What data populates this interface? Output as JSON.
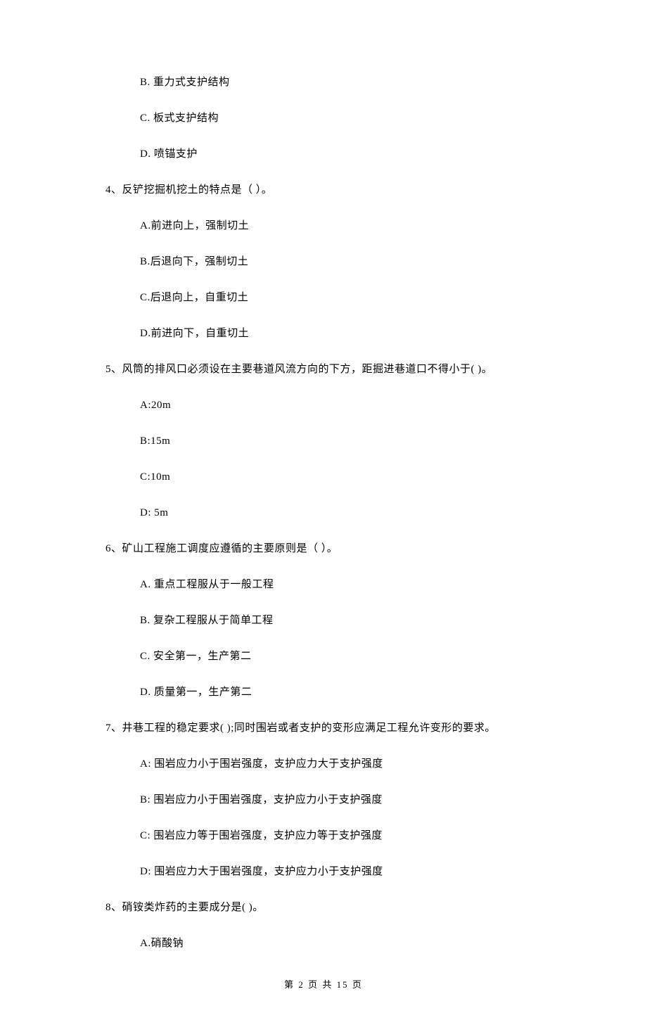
{
  "q3": {
    "options": {
      "B": "B. 重力式支护结构",
      "C": "C. 板式支护结构",
      "D": "D. 喷锚支护"
    }
  },
  "q4": {
    "stem": "4、反铲挖掘机挖土的特点是（    ）。",
    "options": {
      "A": "A.前进向上，强制切土",
      "B": "B.后退向下，强制切土",
      "C": "C.后退向上，自重切土",
      "D": "D.前进向下，自重切土"
    }
  },
  "q5": {
    "stem": "5、风筒的排风口必须设在主要巷道风流方向的下方，距掘进巷道口不得小于(    )。",
    "options": {
      "A": "A:20m",
      "B": "B:15m",
      "C": "C:10m",
      "D": "D: 5m"
    }
  },
  "q6": {
    "stem": "6、矿山工程施工调度应遵循的主要原则是（    ）。",
    "options": {
      "A": "A. 重点工程服从于一般工程",
      "B": "B. 复杂工程服从于简单工程",
      "C": "C. 安全第一，生产第二",
      "D": "D. 质量第一，生产第二"
    }
  },
  "q7": {
    "stem": "7、井巷工程的稳定要求(    );同时围岩或者支护的变形应满足工程允许变形的要求。",
    "options": {
      "A": "A: 围岩应力小于围岩强度，支护应力大于支护强度",
      "B": "B: 围岩应力小于围岩强度，支护应力小于支护强度",
      "C": "C: 围岩应力等于围岩强度，支护应力等于支护强度",
      "D": "D: 围岩应力大于围岩强度，支护应力小于支护强度"
    }
  },
  "q8": {
    "stem": "8、硝铵类炸药的主要成分是(    )。",
    "options": {
      "A": "A.硝酸钠"
    }
  },
  "footer": "第 2 页 共 15 页"
}
